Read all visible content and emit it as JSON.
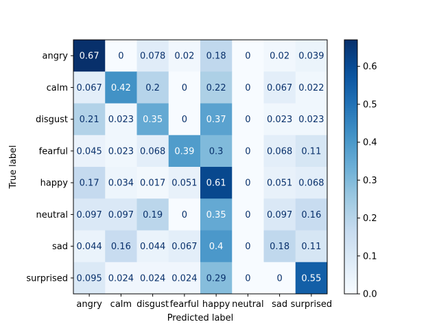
{
  "chart_data": {
    "type": "heatmap",
    "xlabel": "Predicted label",
    "ylabel": "True label",
    "colormap": "Blues",
    "x_labels": [
      "angry",
      "calm",
      "disgust",
      "fearful",
      "happy",
      "neutral",
      "sad",
      "surprised"
    ],
    "y_labels": [
      "angry",
      "calm",
      "disgust",
      "fearful",
      "happy",
      "neutral",
      "sad",
      "surprised"
    ],
    "values": [
      [
        "0.67",
        "0",
        "0.078",
        "0.02",
        "0.18",
        "0",
        "0.02",
        "0.039"
      ],
      [
        "0.067",
        "0.42",
        "0.2",
        "0",
        "0.22",
        "0",
        "0.067",
        "0.022"
      ],
      [
        "0.21",
        "0.023",
        "0.35",
        "0",
        "0.37",
        "0",
        "0.023",
        "0.023"
      ],
      [
        "0.045",
        "0.023",
        "0.068",
        "0.39",
        "0.3",
        "0",
        "0.068",
        "0.11"
      ],
      [
        "0.17",
        "0.034",
        "0.017",
        "0.051",
        "0.61",
        "0",
        "0.051",
        "0.068"
      ],
      [
        "0.097",
        "0.097",
        "0.19",
        "0",
        "0.35",
        "0",
        "0.097",
        "0.16"
      ],
      [
        "0.044",
        "0.16",
        "0.044",
        "0.067",
        "0.4",
        "0",
        "0.18",
        "0.11"
      ],
      [
        "0.095",
        "0.024",
        "0.024",
        "0.024",
        "0.29",
        "0",
        "0",
        "0.55"
      ]
    ],
    "colorbar": {
      "min": 0,
      "max": 0.67,
      "ticks": [
        "0.0",
        "0.1",
        "0.2",
        "0.3",
        "0.4",
        "0.5",
        "0.6"
      ]
    },
    "grid": false,
    "legend": "colorbar-right"
  }
}
